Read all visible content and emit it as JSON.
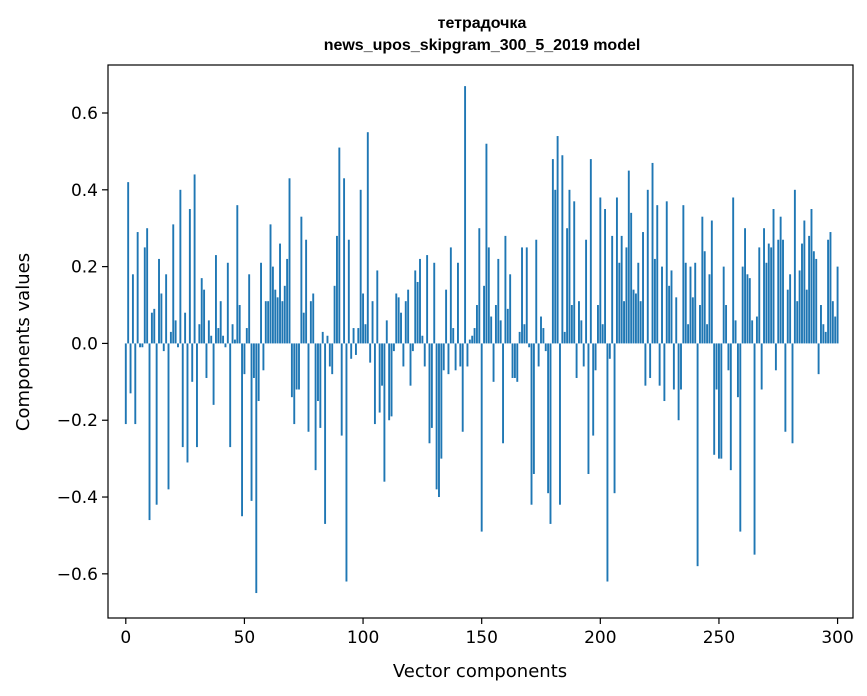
{
  "chart_data": {
    "type": "bar",
    "title": "тетрадочка",
    "subtitle": "news_upos_skipgram_300_5_2019 model",
    "xlabel": "Vector components",
    "ylabel": "Components values",
    "xlim": [
      -7.5,
      306.5
    ],
    "ylim": [
      -0.715,
      0.725
    ],
    "xticks": [
      0,
      50,
      100,
      150,
      200,
      250,
      300
    ],
    "yticks": [
      -0.6,
      -0.4,
      -0.2,
      0.0,
      0.2,
      0.4,
      0.6
    ],
    "ytick_labels": [
      "−0.6",
      "−0.4",
      "−0.2",
      "0.0",
      "0.2",
      "0.4",
      "0.6"
    ],
    "bar_color": "#1f77b4",
    "grid": false,
    "values": [
      -0.21,
      0.42,
      -0.13,
      0.18,
      -0.21,
      0.29,
      -0.01,
      -0.01,
      0.25,
      0.3,
      -0.46,
      0.08,
      0.09,
      -0.42,
      0.22,
      0.13,
      -0.02,
      0.18,
      -0.38,
      0.03,
      0.31,
      0.06,
      -0.01,
      0.4,
      -0.27,
      0.08,
      -0.31,
      0.35,
      -0.1,
      0.44,
      -0.27,
      0.05,
      0.17,
      0.14,
      -0.09,
      0.06,
      0.02,
      -0.16,
      0.23,
      0.04,
      0.11,
      0.02,
      -0.01,
      0.21,
      -0.27,
      0.05,
      0.01,
      0.36,
      0.1,
      -0.45,
      -0.08,
      0.04,
      0.18,
      -0.41,
      -0.09,
      -0.65,
      -0.15,
      0.21,
      -0.07,
      0.11,
      0.11,
      0.31,
      0.2,
      0.14,
      0.12,
      0.26,
      0.11,
      0.15,
      0.22,
      0.43,
      -0.14,
      -0.21,
      -0.12,
      -0.12,
      0.33,
      0.08,
      0.27,
      -0.23,
      0.11,
      0.13,
      -0.33,
      -0.15,
      -0.22,
      0.03,
      -0.47,
      0.02,
      -0.06,
      -0.08,
      0.15,
      0.28,
      0.51,
      -0.24,
      0.43,
      -0.62,
      0.27,
      -0.04,
      0.04,
      -0.03,
      0.04,
      0.4,
      0.13,
      0.05,
      0.55,
      -0.05,
      0.11,
      -0.21,
      0.19,
      -0.18,
      -0.11,
      -0.36,
      0.06,
      -0.2,
      -0.19,
      -0.02,
      0.13,
      0.12,
      0.08,
      -0.06,
      0.11,
      0.14,
      -0.11,
      -0.02,
      0.19,
      0.16,
      0.22,
      0.02,
      -0.06,
      0.23,
      -0.26,
      -0.22,
      0.21,
      -0.38,
      -0.4,
      -0.3,
      -0.07,
      0.14,
      -0.08,
      0.25,
      0.04,
      -0.07,
      0.21,
      -0.06,
      -0.23,
      0.67,
      -0.06,
      0.01,
      0.02,
      0.04,
      0.1,
      0.3,
      -0.49,
      0.15,
      0.52,
      0.25,
      0.07,
      -0.1,
      0.1,
      0.22,
      0.06,
      -0.26,
      0.28,
      0.09,
      0.18,
      -0.09,
      -0.09,
      -0.1,
      0.03,
      0.25,
      0.05,
      0.25,
      -0.01,
      -0.42,
      -0.34,
      0.27,
      -0.06,
      0.07,
      0.04,
      -0.02,
      -0.39,
      -0.47,
      0.48,
      0.4,
      0.54,
      -0.42,
      0.49,
      0.03,
      0.3,
      0.4,
      0.1,
      0.37,
      -0.09,
      0.11,
      0.06,
      -0.06,
      0.27,
      -0.34,
      0.48,
      -0.24,
      -0.07,
      0.1,
      0.38,
      0.05,
      0.35,
      -0.62,
      -0.04,
      0.28,
      -0.39,
      0.38,
      0.21,
      0.28,
      0.11,
      0.25,
      0.45,
      0.34,
      0.14,
      0.13,
      0.21,
      0.11,
      0.29,
      -0.11,
      0.4,
      -0.09,
      0.47,
      0.22,
      0.36,
      -0.11,
      0.2,
      -0.15,
      0.37,
      0.15,
      0.19,
      -0.12,
      0.12,
      -0.2,
      -0.12,
      0.36,
      0.21,
      0.05,
      0.2,
      0.12,
      0.21,
      -0.58,
      0.1,
      0.33,
      0.24,
      0.05,
      0.18,
      0.32,
      -0.29,
      -0.12,
      -0.3,
      -0.3,
      0.2,
      0.1,
      -0.07,
      -0.33,
      0.38,
      0.06,
      -0.14,
      -0.49,
      0.2,
      0.3,
      0.18,
      0.17,
      0.06,
      -0.55,
      0.07,
      0.25,
      -0.12,
      0.3,
      0.21,
      0.26,
      0.25,
      0.35,
      -0.07,
      0.27,
      0.33,
      0.27,
      -0.23,
      0.14,
      0.18,
      -0.26,
      0.4,
      0.11,
      0.19,
      0.26,
      0.32,
      0.14,
      0.28,
      0.35,
      0.24,
      0.22,
      -0.08,
      0.1,
      0.05,
      0.03,
      0.27,
      0.29,
      0.11,
      0.07,
      0.2
    ]
  }
}
